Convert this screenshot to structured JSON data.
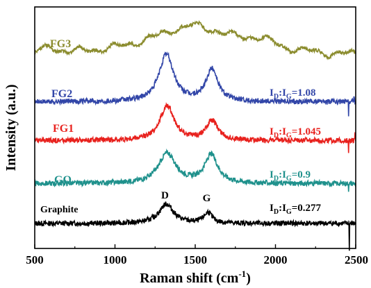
{
  "chart_data": {
    "type": "line",
    "xlabel": "Raman shift (cm",
    "xlabel_sup": "-1",
    "xlabel_close": ")",
    "ylabel": "Intensity (a.u.)",
    "xlim": [
      500,
      2500
    ],
    "x_ticks": [
      "500",
      "1000",
      "1500",
      "2000",
      "2500"
    ],
    "grid": false,
    "y_ticks": false,
    "peak_labels": [
      {
        "name": "D",
        "x": 1320
      },
      {
        "name": "G",
        "x": 1580
      }
    ],
    "series": [
      {
        "name": "Graphite",
        "color": "#000000",
        "offset": 0.0,
        "noise": 0.012,
        "ratio_label": {
          "base": "I",
          "sub1": "D",
          "colon": ":",
          "base2": "I",
          "sub2": "G",
          "value": "=0.277"
        },
        "peaks": [
          {
            "x": 1320,
            "width": 55,
            "height": 0.09
          },
          {
            "x": 1580,
            "width": 30,
            "height": 0.05
          }
        ],
        "spikes": [
          {
            "x": 2460,
            "height": -0.13
          },
          {
            "x": 2505,
            "height": 0.04
          }
        ]
      },
      {
        "name": "GO",
        "color": "#1f918c",
        "offset": 0.185,
        "noise": 0.012,
        "ratio_label": {
          "base": "I",
          "sub1": "D",
          "colon": ":",
          "base2": "I",
          "sub2": "G",
          "value": "=0.9"
        },
        "peaks": [
          {
            "x": 1325,
            "width": 65,
            "height": 0.14
          },
          {
            "x": 1600,
            "width": 50,
            "height": 0.13
          }
        ],
        "spikes": [
          {
            "x": 2455,
            "height": -0.03
          }
        ]
      },
      {
        "name": "FG1",
        "color": "#e8211d",
        "offset": 0.385,
        "noise": 0.012,
        "ratio_label": {
          "base": "I",
          "sub1": "D",
          "colon": ":",
          "base2": "I",
          "sub2": "G",
          "value": "=1.045"
        },
        "peaks": [
          {
            "x": 1325,
            "width": 55,
            "height": 0.16
          },
          {
            "x": 1605,
            "width": 45,
            "height": 0.09
          }
        ],
        "spikes": [
          {
            "x": 2455,
            "height": -0.05
          },
          {
            "x": 2495,
            "height": 0.03
          }
        ]
      },
      {
        "name": "FG2",
        "color": "#3246a8",
        "offset": 0.565,
        "noise": 0.012,
        "ratio_label": {
          "base": "I",
          "sub1": "D",
          "colon": ":",
          "base2": "I",
          "sub2": "G",
          "value": "=1.08"
        },
        "peaks": [
          {
            "x": 1320,
            "width": 55,
            "height": 0.22
          },
          {
            "x": 1605,
            "width": 45,
            "height": 0.15
          }
        ],
        "spikes": [
          {
            "x": 2455,
            "height": -0.06
          },
          {
            "x": 2490,
            "height": 0.03
          }
        ]
      },
      {
        "name": "FG3",
        "color": "#8b8c2e",
        "offset": 0.775,
        "noise": 0.008,
        "ratio_label": null,
        "peaks": [
          {
            "x": 600,
            "width": 40,
            "height": 0.03
          },
          {
            "x": 1480,
            "width": 320,
            "height": 0.14
          },
          {
            "x": 1900,
            "width": 120,
            "height": 0.04
          }
        ],
        "slope": -3.5e-06,
        "spikes": []
      }
    ]
  }
}
